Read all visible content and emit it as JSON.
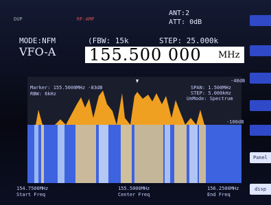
{
  "status": {
    "dup": "DUP",
    "rf_amp": "RF-AMP",
    "ant": "ANT:2",
    "att": "ATT: 0dB"
  },
  "mode": {
    "mode": "MODE:NFM",
    "fbw": "(FBW: 15k",
    "step": "STEP: 25.000k"
  },
  "vfo": {
    "name": "VFO-A",
    "frequency": "155.500 000",
    "unit": "MHz"
  },
  "spectrum": {
    "ref_top": "-40dB",
    "ref_bottom": "-100dB",
    "marker": "Marker: 155.5000MHz -83dB",
    "rbw": "RBW: 6kHz",
    "span": "SPAN: 1.500MHz",
    "step": "STEP: 5.000kHz",
    "mode": "UnMode: Spectrum"
  },
  "axis": {
    "start": "154.7500MHz",
    "start_label": "Start Freq",
    "center": "155.5000MHz",
    "center_label": "Center Freq",
    "end": "156.2500MHz",
    "end_label": "End Freq"
  },
  "buttons": [
    "Panel",
    "disp"
  ]
}
